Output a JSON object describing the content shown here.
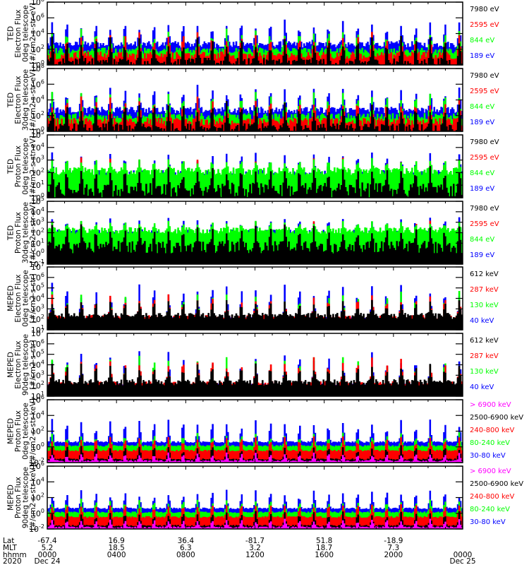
{
  "colors": {
    "black": "#000000",
    "red": "#ff0000",
    "green": "#00ff00",
    "blue": "#0000ff",
    "magenta": "#ff00ff"
  },
  "chart_data": [
    {
      "type": "line",
      "ylabel": [
        "TED",
        "Electron Flux",
        "0deg telescope",
        "[#/cm2-s-str-eV]"
      ],
      "yscale": "log",
      "ylim": [
        1,
        100000000.0
      ],
      "yticks": [
        {
          "exp": 0,
          "label": "10",
          "sup": "0"
        },
        {
          "exp": 2,
          "label": "10",
          "sup": "2"
        },
        {
          "exp": 4,
          "label": "10",
          "sup": "4"
        },
        {
          "exp": 6,
          "label": "10",
          "sup": "6"
        },
        {
          "exp": 8,
          "label": "10",
          "sup": "8"
        }
      ],
      "series": [
        {
          "name": "7980 eV",
          "color": "#000000",
          "base": 0.3,
          "peak": 4.0,
          "noise": 0.6
        },
        {
          "name": "2595 eV",
          "color": "#ff0000",
          "base": 1.2,
          "peak": 4.5,
          "noise": 0.5
        },
        {
          "name": "844 eV",
          "color": "#00ff00",
          "base": 1.8,
          "peak": 5.0,
          "noise": 0.4
        },
        {
          "name": "189 eV",
          "color": "#0000ff",
          "base": 2.6,
          "peak": 6.2,
          "noise": 0.4
        }
      ]
    },
    {
      "type": "line",
      "ylabel": [
        "TED",
        "Electron Flux",
        "30deg telescope",
        "[#/cm2-s-str-eV]"
      ],
      "yscale": "log",
      "ylim": [
        1,
        100000000.0
      ],
      "yticks": [
        {
          "exp": 0,
          "label": "10",
          "sup": "0"
        },
        {
          "exp": 2,
          "label": "10",
          "sup": "2"
        },
        {
          "exp": 4,
          "label": "10",
          "sup": "4"
        },
        {
          "exp": 6,
          "label": "10",
          "sup": "6"
        },
        {
          "exp": 8,
          "label": "10",
          "sup": "8"
        }
      ],
      "series": [
        {
          "name": "7980 eV",
          "color": "#000000",
          "base": 0.4,
          "peak": 4.2,
          "noise": 0.6
        },
        {
          "name": "2595 eV",
          "color": "#ff0000",
          "base": 1.2,
          "peak": 4.8,
          "noise": 0.5
        },
        {
          "name": "844 eV",
          "color": "#00ff00",
          "base": 1.9,
          "peak": 5.3,
          "noise": 0.4
        },
        {
          "name": "189 eV",
          "color": "#0000ff",
          "base": 2.7,
          "peak": 6.3,
          "noise": 0.4
        }
      ]
    },
    {
      "type": "line",
      "ylabel": [
        "TED",
        "Proton Flux",
        "0deg telescope",
        "[#/cm2-s-str-eV]"
      ],
      "yscale": "log",
      "ylim": [
        1,
        100000.0
      ],
      "yticks": [
        {
          "exp": 0,
          "label": "10",
          "sup": "0"
        },
        {
          "exp": 1,
          "label": "10",
          "sup": "1"
        },
        {
          "exp": 2,
          "label": "10",
          "sup": "2"
        },
        {
          "exp": 3,
          "label": "10",
          "sup": "3"
        },
        {
          "exp": 4,
          "label": "10",
          "sup": "4"
        },
        {
          "exp": 5,
          "label": "10",
          "sup": "5"
        }
      ],
      "series": [
        {
          "name": "7980 eV",
          "color": "#000000",
          "base": 0.6,
          "peak": 3.0,
          "noise": 0.6
        },
        {
          "name": "2595 eV",
          "color": "#ff0000",
          "base": 1.4,
          "peak": 3.4,
          "noise": 0.4
        },
        {
          "name": "844 eV",
          "color": "#00ff00",
          "base": 2.1,
          "peak": 3.3,
          "noise": 0.3
        },
        {
          "name": "189 eV",
          "color": "#0000ff",
          "base": 1.8,
          "peak": 3.8,
          "noise": 0.4
        }
      ]
    },
    {
      "type": "line",
      "ylabel": [
        "TED",
        "Proton Flux",
        "30deg telescope",
        "[#/cm2-s-str-eV]"
      ],
      "yscale": "log",
      "ylim": [
        0.1,
        100000.0
      ],
      "yticks": [
        {
          "exp": -1,
          "label": "10",
          "sup": "-1"
        },
        {
          "exp": 0,
          "label": "10",
          "sup": "0"
        },
        {
          "exp": 1,
          "label": "10",
          "sup": "1"
        },
        {
          "exp": 2,
          "label": "10",
          "sup": "2"
        },
        {
          "exp": 3,
          "label": "10",
          "sup": "3"
        },
        {
          "exp": 4,
          "label": "10",
          "sup": "4"
        },
        {
          "exp": 5,
          "label": "10",
          "sup": "5"
        }
      ],
      "series": [
        {
          "name": "7980 eV",
          "color": "#000000",
          "base": 0.6,
          "peak": 3.0,
          "noise": 0.6
        },
        {
          "name": "2595 eV",
          "color": "#ff0000",
          "base": 1.4,
          "peak": 3.3,
          "noise": 0.4
        },
        {
          "name": "844 eV",
          "color": "#00ff00",
          "base": 2.2,
          "peak": 3.2,
          "noise": 0.3
        },
        {
          "name": "189 eV",
          "color": "#0000ff",
          "base": 1.9,
          "peak": 3.6,
          "noise": 0.4
        }
      ]
    },
    {
      "type": "line",
      "ylabel": [
        "MEPED",
        "Electron Flux",
        "0deg telescope",
        "[#/cm2-s-str]"
      ],
      "yscale": "log",
      "ylim": [
        10,
        10000000.0
      ],
      "yticks": [
        {
          "exp": 1,
          "label": "10",
          "sup": "1"
        },
        {
          "exp": 2,
          "label": "10",
          "sup": "2"
        },
        {
          "exp": 3,
          "label": "10",
          "sup": "3"
        },
        {
          "exp": 4,
          "label": "10",
          "sup": "4"
        },
        {
          "exp": 5,
          "label": "10",
          "sup": "5"
        },
        {
          "exp": 6,
          "label": "10",
          "sup": "6"
        },
        {
          "exp": 7,
          "label": "10",
          "sup": "7"
        }
      ],
      "series": [
        {
          "name": "612 keV",
          "color": "#000000",
          "base": 2.3,
          "peak": 4.0,
          "noise": 0.3
        },
        {
          "name": "287 keV",
          "color": "#ff0000",
          "base": 2.2,
          "peak": 4.6,
          "noise": 0.2
        },
        {
          "name": "130 keV",
          "color": "#00ff00",
          "base": 1.9,
          "peak": 5.0,
          "noise": 0.1
        },
        {
          "name": "40 keV",
          "color": "#0000ff",
          "base": 2.1,
          "peak": 5.8,
          "noise": 0.1
        }
      ]
    },
    {
      "type": "line",
      "ylabel": [
        "MEPED",
        "Electron Flux",
        "90deg telescope",
        "[#/cm2-s-str]"
      ],
      "yscale": "log",
      "ylim": [
        10,
        10000000.0
      ],
      "yticks": [
        {
          "exp": 1,
          "label": "10",
          "sup": "1"
        },
        {
          "exp": 2,
          "label": "10",
          "sup": "2"
        },
        {
          "exp": 3,
          "label": "10",
          "sup": "3"
        },
        {
          "exp": 4,
          "label": "10",
          "sup": "4"
        },
        {
          "exp": 5,
          "label": "10",
          "sup": "5"
        },
        {
          "exp": 6,
          "label": "10",
          "sup": "6"
        },
        {
          "exp": 7,
          "label": "10",
          "sup": "7"
        }
      ],
      "series": [
        {
          "name": "612 keV",
          "color": "#000000",
          "base": 2.3,
          "peak": 4.3,
          "noise": 0.3
        },
        {
          "name": "287 keV",
          "color": "#ff0000",
          "base": 2.2,
          "peak": 5.0,
          "noise": 0.2
        },
        {
          "name": "130 keV",
          "color": "#00ff00",
          "base": 1.9,
          "peak": 5.2,
          "noise": 0.1
        },
        {
          "name": "40 keV",
          "color": "#0000ff",
          "base": 2.1,
          "peak": 5.6,
          "noise": 0.1
        }
      ]
    },
    {
      "type": "line",
      "ylabel": [
        "MEPED",
        "Proton Flux",
        "0deg telescope",
        "[#/cm2-s-str-keV]"
      ],
      "yscale": "log",
      "ylim": [
        0.01,
        1000000.0
      ],
      "yticks": [
        {
          "exp": -2,
          "label": "10",
          "sup": "-2"
        },
        {
          "exp": 0,
          "label": "10",
          "sup": "0"
        },
        {
          "exp": 2,
          "label": "10",
          "sup": "2"
        },
        {
          "exp": 4,
          "label": "10",
          "sup": "4"
        },
        {
          "exp": 6,
          "label": "10",
          "sup": "6"
        }
      ],
      "series": [
        {
          "name": "> 6900 keV",
          "color": "#ff00ff",
          "base": -1.8,
          "peak": -0.6,
          "noise": 0.1
        },
        {
          "name": "2500-6900 keV",
          "color": "#000000",
          "base": -1.6,
          "peak": 0.5,
          "noise": 0.1
        },
        {
          "name": "240-800 keV",
          "color": "#ff0000",
          "base": -0.5,
          "peak": 1.5,
          "noise": 0.1
        },
        {
          "name": "80-240 keV",
          "color": "#00ff00",
          "base": 0.1,
          "peak": 2.0,
          "noise": 0.1
        },
        {
          "name": "30-80 keV",
          "color": "#0000ff",
          "base": 0.6,
          "peak": 3.8,
          "noise": 0.1
        }
      ]
    },
    {
      "type": "line",
      "ylabel": [
        "MEPED",
        "Proton Flux",
        "90deg telescope",
        "[#/cm2-s-str-keV]"
      ],
      "yscale": "log",
      "ylim": [
        0.01,
        1000000.0
      ],
      "yticks": [
        {
          "exp": -2,
          "label": "10",
          "sup": "-2"
        },
        {
          "exp": 0,
          "label": "10",
          "sup": "0"
        },
        {
          "exp": 2,
          "label": "10",
          "sup": "2"
        },
        {
          "exp": 4,
          "label": "10",
          "sup": "4"
        },
        {
          "exp": 6,
          "label": "10",
          "sup": "6"
        }
      ],
      "series": [
        {
          "name": "> 6900 keV",
          "color": "#ff00ff",
          "base": -1.8,
          "peak": -0.6,
          "noise": 0.1
        },
        {
          "name": "2500-6900 keV",
          "color": "#000000",
          "base": -1.6,
          "peak": 0.5,
          "noise": 0.1
        },
        {
          "name": "240-800 keV",
          "color": "#ff0000",
          "base": -0.5,
          "peak": 1.5,
          "noise": 0.1
        },
        {
          "name": "80-240 keV",
          "color": "#00ff00",
          "base": 0.1,
          "peak": 2.0,
          "noise": 0.1
        },
        {
          "name": "30-80 keV",
          "color": "#0000ff",
          "base": 0.6,
          "peak": 3.3,
          "noise": 0.1
        }
      ]
    }
  ],
  "xaxis": {
    "range_hours": [
      0,
      24
    ],
    "row_labels": [
      "Lat",
      "MLT",
      "hhmm",
      "2020"
    ],
    "ticks": [
      {
        "hour": 0,
        "lat": "-67.4",
        "mlt": "5.2",
        "hhmm": "0000",
        "date": "Dec 24"
      },
      {
        "hour": 4,
        "lat": "16.9",
        "mlt": "18.5",
        "hhmm": "0400",
        "date": ""
      },
      {
        "hour": 8,
        "lat": "36.4",
        "mlt": "6.3",
        "hhmm": "0800",
        "date": ""
      },
      {
        "hour": 12,
        "lat": "-81.7",
        "mlt": "3.2",
        "hhmm": "1200",
        "date": ""
      },
      {
        "hour": 16,
        "lat": "51.8",
        "mlt": "18.7",
        "hhmm": "1600",
        "date": ""
      },
      {
        "hour": 20,
        "lat": "-18.9",
        "mlt": "7.3",
        "hhmm": "2000",
        "date": ""
      },
      {
        "hour": 24,
        "lat": "",
        "mlt": "",
        "hhmm": "0000",
        "date": "Dec 25"
      }
    ]
  }
}
